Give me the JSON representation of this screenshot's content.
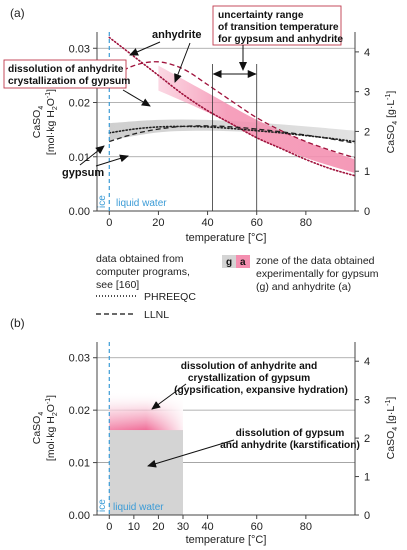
{
  "panels": {
    "a": {
      "label": "(a)",
      "left_axis": {
        "label_line1": "CaSO",
        "label_sub1": "4",
        "label_line2": "[mol·kg H",
        "label_sub2": "2",
        "label_line2b": "O",
        "label_sup2": "-1",
        "label_line2c": "]",
        "ticks": [
          "0.00",
          "0.01",
          "0.02",
          "0.03"
        ]
      },
      "right_axis": {
        "label_main": "CaSO",
        "label_sub": "4",
        "label_rest": " [g·L",
        "label_sup": "-1",
        "label_end": "]",
        "ticks": [
          "0",
          "1",
          "2",
          "3",
          "4"
        ]
      },
      "x_axis": {
        "label": "temperature [°C]",
        "ticks": [
          "0",
          "20",
          "40",
          "60",
          "80"
        ]
      },
      "annotations": {
        "anhydrite": "anhydrite",
        "gypsum": "gypsum",
        "dissolution_l1": "dissolution of anhydrite",
        "dissolution_l2": "crystallization of gypsum",
        "uncertainty_l1": "uncertainty range",
        "uncertainty_l2": "of transition temperature",
        "uncertainty_l3": "for gypsum and anhydrite",
        "ice": "ice",
        "liquid_water": "liquid water"
      }
    },
    "legend": {
      "data_l1": "data obtained from",
      "data_l2": "computer programs,",
      "data_l3": "see [160]",
      "phreeqc": "PHREEQC",
      "llnl": "LLNL",
      "swatch_g": "g",
      "swatch_a": "a",
      "zone_l1": "zone of the data obtained",
      "zone_l2": "experimentally for gypsum",
      "zone_l3": "(g) and anhydrite (a)"
    },
    "b": {
      "label": "(b)",
      "left_axis": {
        "ticks": [
          "0.00",
          "0.01",
          "0.02",
          "0.03"
        ]
      },
      "right_axis": {
        "ticks": [
          "0",
          "1",
          "2",
          "3",
          "4"
        ]
      },
      "x_axis": {
        "label": "temperature [°C]",
        "ticks": [
          "0",
          "10",
          "20",
          "30",
          "40",
          "60",
          "80"
        ]
      },
      "annotations": {
        "gypsification_l1": "dissolution of anhydrite and",
        "gypsification_l2": "crystallization of gypsum",
        "gypsification_l3": "(gypsification, expansive hydration)",
        "karst_l1": "dissolution of gypsum",
        "karst_l2": "and anhydrite (karstification)",
        "ice": "ice",
        "liquid_water": "liquid water"
      }
    }
  },
  "colors": {
    "pink_band": "#f48fb0",
    "gray_band": "#d4d4d4",
    "anhydrite_curve": "#a0123c",
    "ice_line": "#3b9bd6",
    "label_border": "#c0394d"
  },
  "chart_data": [
    {
      "type": "line",
      "panel": "a",
      "xlim": [
        -5,
        100
      ],
      "ylim": [
        0,
        0.033
      ],
      "y2lim": [
        0,
        4.5
      ],
      "xlabel": "temperature [°C]",
      "grid": "horizontal",
      "series": [
        {
          "name": "anhydrite",
          "style": "dotted",
          "x": [
            0,
            10,
            20,
            30,
            40,
            50,
            60,
            70,
            80,
            90,
            100
          ],
          "y": [
            0.032,
            0.0285,
            0.025,
            0.0215,
            0.0185,
            0.016,
            0.0135,
            0.0115,
            0.0095,
            0.0078,
            0.0065
          ]
        },
        {
          "name": "anhydrite",
          "style": "dashed",
          "x": [
            0,
            10,
            20,
            30,
            40,
            50,
            60,
            70,
            80,
            90,
            100
          ],
          "y": [
            0.0245,
            0.0268,
            0.0275,
            0.0262,
            0.0233,
            0.0202,
            0.0172,
            0.0148,
            0.0128,
            0.0112,
            0.0098
          ]
        },
        {
          "name": "gypsum",
          "style": "dotted",
          "x": [
            0,
            10,
            20,
            30,
            40,
            50,
            60,
            70,
            80,
            90,
            100
          ],
          "y": [
            0.0144,
            0.0151,
            0.0155,
            0.0156,
            0.0155,
            0.0152,
            0.0148,
            0.0144,
            0.0139,
            0.0134,
            0.0128
          ]
        },
        {
          "name": "gypsum",
          "style": "dashed",
          "x": [
            0,
            10,
            20,
            30,
            40,
            50,
            60,
            70,
            80,
            90,
            100
          ],
          "y": [
            0.0128,
            0.0142,
            0.0151,
            0.0156,
            0.0157,
            0.0155,
            0.0151,
            0.0146,
            0.014,
            0.0133,
            0.0125
          ]
        }
      ],
      "zones": [
        {
          "name": "g",
          "x": [
            0,
            20,
            40,
            60,
            80,
            100
          ],
          "y_low": [
            0.013,
            0.0145,
            0.0148,
            0.0145,
            0.0138,
            0.013
          ],
          "y_high": [
            0.0162,
            0.0168,
            0.0168,
            0.0163,
            0.0156,
            0.0148
          ]
        },
        {
          "name": "a",
          "x": [
            20,
            40,
            60,
            80,
            100
          ],
          "y_low": [
            0.0222,
            0.0182,
            0.0135,
            0.0098,
            0.007
          ],
          "y_high": [
            0.0268,
            0.0218,
            0.0168,
            0.0128,
            0.0095
          ]
        }
      ],
      "transition_range": [
        42,
        60
      ]
    },
    {
      "type": "area",
      "panel": "b",
      "xlim": [
        -5,
        100
      ],
      "ylim": [
        0,
        0.033
      ],
      "y2lim": [
        0,
        4.5
      ],
      "xlabel": "temperature [°C]",
      "regions": [
        {
          "name": "gypsification",
          "x": [
            0,
            30
          ],
          "y": [
            0.0162,
            0.0235
          ]
        },
        {
          "name": "karstification",
          "x": [
            0,
            30
          ],
          "y": [
            0,
            0.0162
          ]
        }
      ]
    }
  ]
}
